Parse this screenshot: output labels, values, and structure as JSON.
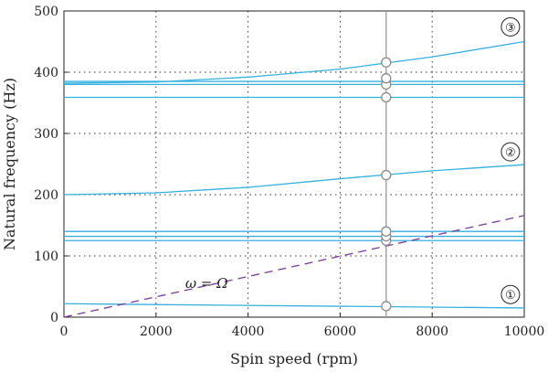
{
  "chart_data": {
    "type": "line",
    "title": "",
    "xlabel": "Spin speed (rpm)",
    "ylabel": "Natural frequency (Hz)",
    "xlim": [
      0,
      10000
    ],
    "ylim": [
      0,
      500
    ],
    "xticks": [
      0,
      2000,
      4000,
      6000,
      8000,
      10000
    ],
    "yticks": [
      0,
      100,
      200,
      300,
      400,
      500
    ],
    "grid": "dotted",
    "line_color": "#35b0e0",
    "excitation_color": "#7b3b9a",
    "marker_line_color": "#9a9a9a",
    "series": [
      {
        "x": [
          0,
          10000
        ],
        "y": [
          22,
          15
        ]
      },
      {
        "x": [
          0,
          10000
        ],
        "y": [
          125,
          125
        ]
      },
      {
        "x": [
          0,
          10000
        ],
        "y": [
          132,
          132
        ]
      },
      {
        "x": [
          0,
          10000
        ],
        "y": [
          140,
          140
        ]
      },
      {
        "x": [
          0,
          2000,
          4000,
          6000,
          8000,
          10000
        ],
        "y": [
          200,
          203,
          212,
          226,
          239,
          249
        ]
      },
      {
        "x": [
          0,
          10000
        ],
        "y": [
          359,
          359
        ]
      },
      {
        "x": [
          0,
          10000
        ],
        "y": [
          380,
          380
        ]
      },
      {
        "x": [
          0,
          10000
        ],
        "y": [
          385,
          385
        ]
      },
      {
        "x": [
          0,
          2000,
          4000,
          6000,
          8000,
          10000
        ],
        "y": [
          382,
          384,
          392,
          405,
          425,
          450
        ]
      },
      {
        "x": [
          0,
          10000
        ],
        "y": [
          0,
          166
        ],
        "style": "dashed",
        "label": "ω = Ω"
      }
    ],
    "marker_speed": 7000,
    "markers_y": [
      18,
      125,
      132,
      140,
      232,
      359,
      380,
      390,
      416
    ],
    "annotations": [
      {
        "text": "ω = Ω",
        "x": 3100,
        "y": 55
      },
      {
        "text": "①",
        "x": 9700,
        "y": 37
      },
      {
        "text": "②",
        "x": 9700,
        "y": 270
      },
      {
        "text": "③",
        "x": 9700,
        "y": 474
      }
    ]
  }
}
